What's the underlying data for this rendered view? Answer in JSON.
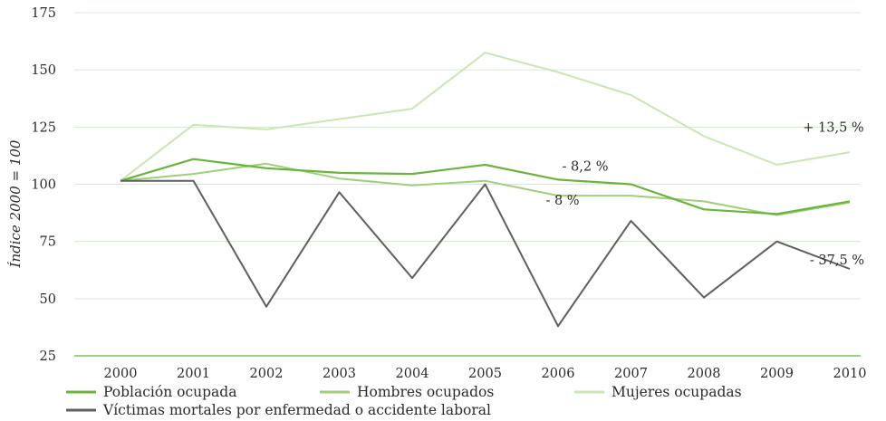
{
  "chart_data": {
    "type": "line",
    "ylabel": "Índice 2000 = 100",
    "xlabel": "",
    "ylim": [
      25,
      175
    ],
    "yticks": [
      25,
      50,
      75,
      100,
      125,
      150,
      175
    ],
    "grid": true,
    "legend_placement": "bottom",
    "categories": [
      "2000",
      "2001",
      "2002",
      "2003",
      "2004",
      "2005",
      "2006",
      "2007",
      "2008",
      "2009",
      "2010"
    ],
    "series": [
      {
        "name": "Población ocupada",
        "color": "#6ab43e",
        "values": [
          101.5,
          111,
          107,
          105,
          104.5,
          108.5,
          102,
          100,
          89,
          87,
          92.5
        ]
      },
      {
        "name": "Hombres ocupados",
        "color": "#9fcf7a",
        "values": [
          101.5,
          104.5,
          109,
          102.5,
          99.5,
          101.5,
          95,
          95,
          92.5,
          86.5,
          92
        ]
      },
      {
        "name": "Mujeres ocupadas",
        "color": "#cce5b5",
        "values": [
          101.5,
          126,
          124,
          128.5,
          133,
          157.5,
          149,
          139,
          121,
          108.5,
          114
        ]
      },
      {
        "name": "Víctimas mortales por enfermedad o accidente laboral",
        "color": "#5f5f5f",
        "values": [
          101.5,
          101.5,
          46.5,
          96.5,
          59,
          100,
          38,
          84,
          50.5,
          75,
          63
        ]
      }
    ],
    "annotations": [
      {
        "text": "+ 13,5 %",
        "x": "2010",
        "y": 125
      },
      {
        "text": "- 8,2 %",
        "x": "2006",
        "y": 108
      },
      {
        "text": "- 8 %",
        "x": "2006",
        "y": 93
      },
      {
        "text": "- 37,5 %",
        "x": "2010",
        "y": 67
      }
    ]
  }
}
